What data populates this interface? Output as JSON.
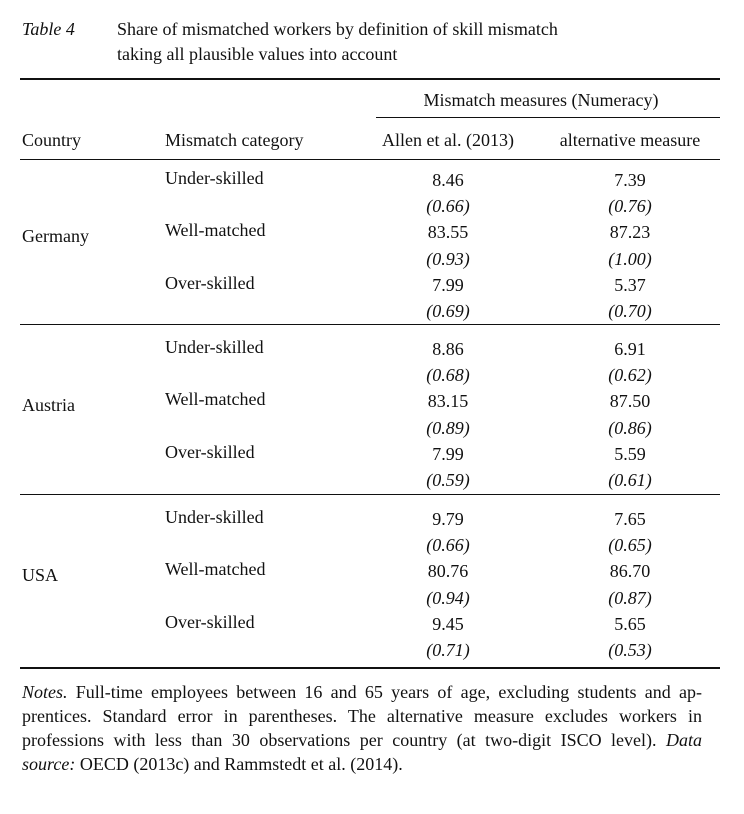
{
  "caption": {
    "label": "Table 4",
    "title_lines": [
      "Share of mismatched workers by definition of skill mismatch",
      "taking all plausible values into account"
    ]
  },
  "table": {
    "spanner": "Mismatch measures (Numeracy)",
    "headers": [
      "Country",
      "Mismatch category",
      "Allen et al. (2013)",
      "alternative measure"
    ],
    "groups": [
      {
        "country": "Germany",
        "rows": [
          {
            "category": "Under-skilled",
            "allen": "8.46",
            "allen_se": "(0.66)",
            "alt": "7.39",
            "alt_se": "(0.76)"
          },
          {
            "category": "Well-matched",
            "allen": "83.55",
            "allen_se": "(0.93)",
            "alt": "87.23",
            "alt_se": "(1.00)"
          },
          {
            "category": "Over-skilled",
            "allen": "7.99",
            "allen_se": "(0.69)",
            "alt": "5.37",
            "alt_se": "(0.70)"
          }
        ]
      },
      {
        "country": "Austria",
        "rows": [
          {
            "category": "Under-skilled",
            "allen": "8.86",
            "allen_se": "(0.68)",
            "alt": "6.91",
            "alt_se": "(0.62)"
          },
          {
            "category": "Well-matched",
            "allen": "83.15",
            "allen_se": "(0.89)",
            "alt": "87.50",
            "alt_se": "(0.86)"
          },
          {
            "category": "Over-skilled",
            "allen": "7.99",
            "allen_se": "(0.59)",
            "alt": "5.59",
            "alt_se": "(0.61)"
          }
        ]
      },
      {
        "country": "USA",
        "rows": [
          {
            "category": "Under-skilled",
            "allen": "9.79",
            "allen_se": "(0.66)",
            "alt": "7.65",
            "alt_se": "(0.65)"
          },
          {
            "category": "Well-matched",
            "allen": "80.76",
            "allen_se": "(0.94)",
            "alt": "86.70",
            "alt_se": "(0.87)"
          },
          {
            "category": "Over-skilled",
            "allen": "9.45",
            "allen_se": "(0.71)",
            "alt": "5.65",
            "alt_se": "(0.53)"
          }
        ]
      }
    ]
  },
  "notes": {
    "lines": [
      [
        {
          "text": "Notes.",
          "italic": true
        },
        {
          "text": "Full-time employees between 16 and 65 years of age, excluding students and ap-"
        }
      ],
      [
        {
          "text": "prentices. Standard error in parentheses. The alternative measure excludes workers in"
        }
      ],
      [
        {
          "text": "professions with less than 30 observations per country (at two-digit ISCO level)."
        },
        {
          "text": "Data",
          "italic": true
        }
      ],
      [
        {
          "text": "source:",
          "italic": true
        },
        {
          "text": "OECD (2013c) and Rammstedt et al. (2014)."
        }
      ]
    ]
  }
}
